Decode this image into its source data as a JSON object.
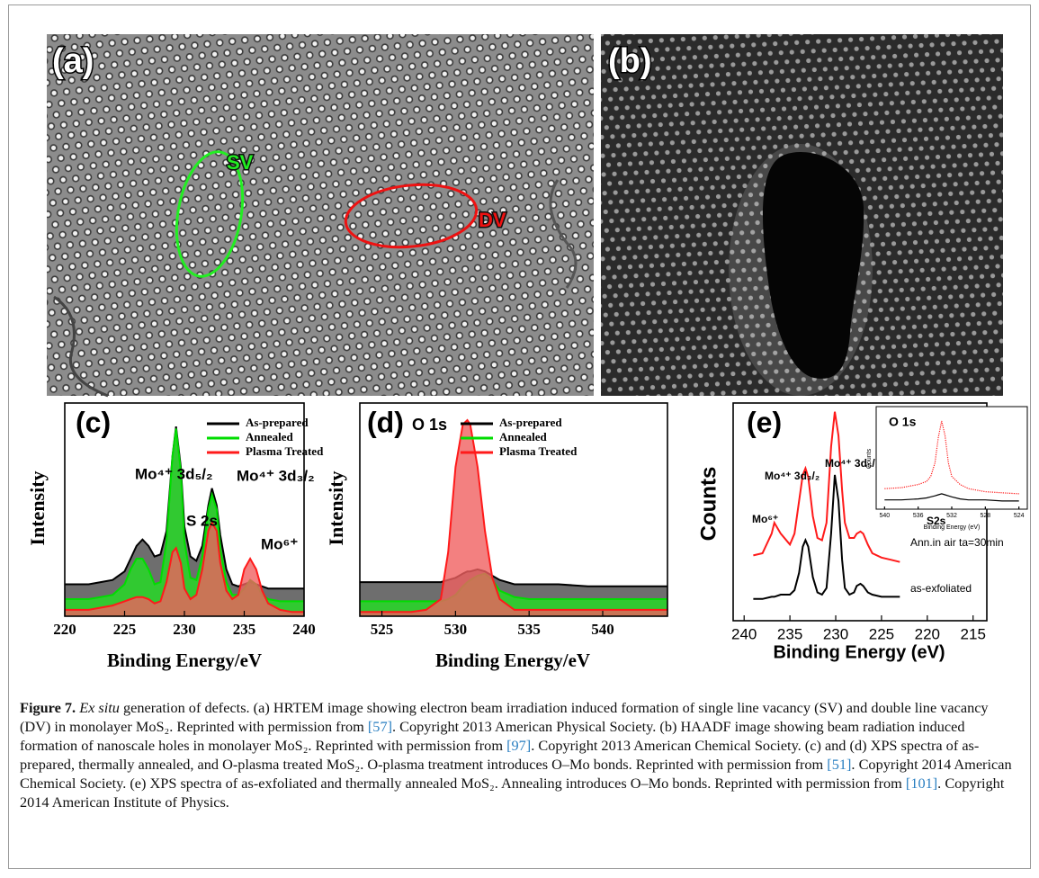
{
  "panels": [
    {
      "label": "(a)",
      "annotations": [
        "SV",
        "DV"
      ]
    },
    {
      "label": "(b)"
    }
  ],
  "chart_data": [
    {
      "type": "area",
      "label": "(c)",
      "xlabel": "Binding Energy/eV",
      "ylabel": "Intensity",
      "legend": "upper right",
      "x": [
        220,
        221,
        222,
        223,
        224,
        225,
        225.5,
        226,
        226.5,
        227,
        227.5,
        228,
        228.5,
        229,
        229.3,
        229.7,
        230,
        230.5,
        231,
        231.5,
        232,
        232.3,
        232.7,
        233,
        233.5,
        234,
        234.5,
        235,
        235.5,
        236,
        236.5,
        237,
        238,
        239,
        240
      ],
      "xlim": [
        220,
        240
      ],
      "xticks": [
        220,
        225,
        230,
        235,
        240
      ],
      "ylim": [
        0,
        100
      ],
      "series": [
        {
          "name": "As-prepared",
          "color": "#000000",
          "fill": "#4a4a4a",
          "values": [
            15,
            15,
            15,
            16,
            17,
            21,
            27,
            33,
            36,
            33,
            28,
            29,
            40,
            75,
            89,
            70,
            42,
            28,
            26,
            33,
            52,
            60,
            52,
            38,
            22,
            15,
            14,
            15,
            16,
            15,
            14,
            13,
            13,
            13,
            13
          ]
        },
        {
          "name": "Annealed",
          "color": "#00dd00",
          "fill": "#22e022",
          "values": [
            8,
            8,
            8,
            9,
            10,
            15,
            22,
            27,
            27,
            22,
            15,
            16,
            35,
            75,
            88,
            68,
            35,
            18,
            17,
            28,
            50,
            57,
            50,
            32,
            16,
            10,
            10,
            13,
            17,
            15,
            10,
            8,
            7,
            7,
            7
          ]
        },
        {
          "name": "Plasma Treated",
          "color": "#ff1a1a",
          "fill": "#f06060",
          "values": [
            3,
            3,
            3,
            4,
            5,
            7,
            8,
            9,
            9,
            8,
            6,
            7,
            16,
            30,
            32,
            25,
            13,
            8,
            10,
            22,
            40,
            44,
            40,
            25,
            12,
            8,
            10,
            22,
            27,
            22,
            12,
            6,
            3,
            2,
            2
          ]
        }
      ],
      "annotations": [
        "Mo⁴⁺ 3d₅/₂",
        "Mo⁴⁺ 3d₃/₂",
        "S 2s",
        "Mo⁶⁺"
      ]
    },
    {
      "type": "area",
      "label": "(d)",
      "title": "O 1s",
      "xlabel": "Binding Energy/eV",
      "ylabel": "Intensity",
      "legend": "upper right",
      "x": [
        523.5,
        525,
        527,
        528,
        529,
        529.5,
        530,
        530.5,
        530.8,
        531,
        531.5,
        532,
        532.5,
        533,
        534,
        535,
        537,
        539,
        541,
        543,
        544.4
      ],
      "xlim": [
        523.5,
        544.4
      ],
      "xticks": [
        525,
        530,
        535,
        540
      ],
      "ylim": [
        0,
        100
      ],
      "series": [
        {
          "name": "As-prepared",
          "color": "#000000",
          "fill": "#4a4a4a",
          "values": [
            16,
            16,
            16,
            16,
            16,
            17,
            18,
            20,
            21,
            21,
            22,
            21,
            19,
            17,
            15,
            15,
            15,
            14,
            14,
            14,
            14
          ]
        },
        {
          "name": "Annealed",
          "color": "#00dd00",
          "fill": "#22e022",
          "values": [
            7,
            7,
            7,
            7,
            7,
            8,
            10,
            14,
            16,
            17,
            19,
            20,
            17,
            12,
            9,
            8,
            8,
            8,
            8,
            8,
            8
          ]
        },
        {
          "name": "Plasma Treated",
          "color": "#ff1a1a",
          "fill": "#f06060",
          "values": [
            2,
            2,
            2,
            3,
            8,
            30,
            70,
            90,
            92,
            90,
            70,
            40,
            18,
            8,
            3,
            3,
            3,
            3,
            3,
            3,
            3
          ]
        }
      ]
    },
    {
      "type": "line",
      "label": "(e)",
      "xlabel": "Binding Energy (eV)",
      "ylabel": "Counts",
      "x": [
        239,
        238,
        237,
        236.7,
        236,
        235,
        234.5,
        234,
        233.6,
        233.3,
        233,
        232.5,
        232,
        231.5,
        231,
        230.5,
        230.1,
        229.7,
        229.3,
        229,
        228.5,
        228,
        227.7,
        227.3,
        227,
        226.5,
        226,
        225,
        224,
        223
      ],
      "xlim": [
        241.2,
        213.5
      ],
      "xticks": [
        240,
        235,
        230,
        225,
        220,
        215
      ],
      "ylim": [
        0,
        100
      ],
      "series": [
        {
          "name": "Ann.in air ta=30min",
          "color": "#ff1a1a",
          "values": [
            30,
            31,
            40,
            45,
            40,
            35,
            40,
            55,
            67,
            70,
            66,
            48,
            38,
            37,
            45,
            80,
            96,
            85,
            60,
            45,
            38,
            38,
            40,
            41,
            40,
            35,
            31,
            29,
            28,
            27
          ]
        },
        {
          "name": "as-exfoliated",
          "color": "#000000",
          "values": [
            10,
            10,
            11,
            11,
            12,
            12,
            14,
            22,
            34,
            37,
            34,
            20,
            13,
            12,
            15,
            40,
            67,
            55,
            28,
            15,
            12,
            13,
            16,
            17,
            16,
            13,
            12,
            11,
            11,
            11
          ]
        }
      ],
      "annotations": [
        "Mo⁶⁺",
        "Mo⁴⁺ 3d₃/₂",
        "Mo⁴⁺ 3d₅/₂",
        "S2s"
      ]
    },
    {
      "type": "line",
      "title": "O 1s",
      "xlabel": "Binding Energy (eV)",
      "ylabel": "Counts",
      "x": [
        540,
        538,
        536,
        535,
        534.5,
        534,
        533.6,
        533.2,
        532.8,
        532.4,
        532,
        531,
        530,
        528,
        526,
        524
      ],
      "xlim": [
        541,
        523
      ],
      "xticks": [
        540,
        536,
        532,
        528,
        524
      ],
      "ylim": [
        0,
        100
      ],
      "series": [
        {
          "color": "#ff1a1a",
          "linestyle": "dotted",
          "values": [
            20,
            21,
            24,
            27,
            32,
            45,
            70,
            86,
            72,
            45,
            32,
            24,
            20,
            17,
            16,
            15
          ]
        },
        {
          "color": "#000000",
          "values": [
            9,
            9,
            10,
            11,
            12,
            13,
            14,
            15,
            14,
            13,
            12,
            10,
            9,
            9,
            8,
            8
          ]
        }
      ]
    }
  ],
  "caption": {
    "label": "Figure 7.",
    "emphasis": "Ex situ",
    "segments": [
      "generation of defects. (a) HRTEM image showing electron beam irradiation induced formation of single line vacancy (SV) and double line vacancy (DV) in monolayer MoS₂. Reprinted with permission from ",
      "[57]",
      ". Copyright 2013 American Physical Society. (b) HAADF image showing beam radiation induced formation of nanoscale holes in monolayer MoS₂. Reprinted with permission from ",
      "[97]",
      ". Copyright 2013 American Chemical Society. (c) and (d) XPS spectra of as-prepared, thermally annealed, and O-plasma treated MoS₂. O-plasma treatment introduces O–Mo bonds. Reprinted with permission from ",
      "[51]",
      ". Copyright 2014 American Chemical Society. (e) XPS spectra of as-exfoliated and thermally annealed MoS₂. Annealing introduces O–Mo bonds. Reprinted with permission from ",
      "[101]",
      ". Copyright 2014 American Institute of Physics."
    ]
  }
}
